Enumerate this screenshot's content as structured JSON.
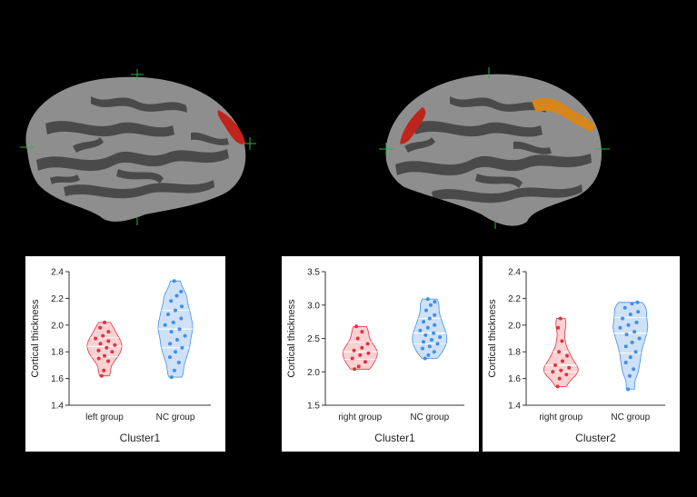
{
  "colors": {
    "background": "#000000",
    "brain_gyri": "#8e8e8e",
    "brain_sulci": "#4a4a4a",
    "cluster_red": "#c0241a",
    "cluster_orange": "#d6861a",
    "marker_green": "#2bb24a",
    "group_red": "#e0333c",
    "group_blue": "#3f8fe6",
    "violin_red_fill": "#f8c9cb",
    "violin_blue_fill": "#c6dcf7"
  },
  "brains": [
    {
      "view": "left-lateral",
      "cluster_colors": [
        "#c0241a"
      ]
    },
    {
      "view": "right-lateral",
      "cluster_colors": [
        "#c0241a",
        "#d6861a"
      ]
    }
  ],
  "chart_data": [
    {
      "type": "violin",
      "title": "Cluster1",
      "ylabel": "Cortical thickness",
      "ylim": [
        1.4,
        2.4
      ],
      "yticks": [
        1.4,
        1.6,
        1.8,
        2.0,
        2.2,
        2.4
      ],
      "categories": [
        "left group",
        "NC group"
      ],
      "series": [
        {
          "name": "left group",
          "color": "#e0333c",
          "fill": "#f8c9cb",
          "values": [
            1.62,
            1.66,
            1.73,
            1.75,
            1.77,
            1.8,
            1.81,
            1.83,
            1.85,
            1.86,
            1.88,
            1.9,
            1.92,
            1.95,
            1.98,
            2.02
          ]
        },
        {
          "name": "NC group",
          "color": "#3f8fe6",
          "fill": "#c6dcf7",
          "values": [
            1.61,
            1.66,
            1.72,
            1.76,
            1.8,
            1.83,
            1.86,
            1.89,
            1.92,
            1.95,
            1.97,
            2.0,
            2.02,
            2.05,
            2.08,
            2.11,
            2.14,
            2.18,
            2.22,
            2.25,
            2.33
          ]
        }
      ]
    },
    {
      "type": "violin",
      "title": "Cluster1",
      "ylabel": "Cortical thickness",
      "ylim": [
        1.5,
        3.5
      ],
      "yticks": [
        1.5,
        2.0,
        2.5,
        3.0,
        3.5
      ],
      "categories": [
        "right group",
        "NC group"
      ],
      "series": [
        {
          "name": "right group",
          "color": "#e0333c",
          "fill": "#f8c9cb",
          "values": [
            2.04,
            2.08,
            2.15,
            2.2,
            2.25,
            2.28,
            2.32,
            2.36,
            2.42,
            2.5,
            2.6,
            2.68
          ]
        },
        {
          "name": "NC group",
          "color": "#3f8fe6",
          "fill": "#c6dcf7",
          "values": [
            2.2,
            2.25,
            2.3,
            2.35,
            2.38,
            2.42,
            2.45,
            2.48,
            2.52,
            2.55,
            2.58,
            2.62,
            2.66,
            2.7,
            2.75,
            2.8,
            2.85,
            2.92,
            3.0,
            3.05,
            3.09
          ]
        }
      ]
    },
    {
      "type": "violin",
      "title": "Cluster2",
      "ylabel": "Cortical thickness",
      "ylim": [
        1.4,
        2.4
      ],
      "yticks": [
        1.4,
        1.6,
        1.8,
        2.0,
        2.2,
        2.4
      ],
      "categories": [
        "right group",
        "NC group"
      ],
      "series": [
        {
          "name": "right group",
          "color": "#e0333c",
          "fill": "#f8c9cb",
          "values": [
            1.54,
            1.6,
            1.63,
            1.65,
            1.66,
            1.68,
            1.7,
            1.73,
            1.77,
            1.8,
            1.88,
            1.98,
            2.05
          ]
        },
        {
          "name": "NC group",
          "color": "#3f8fe6",
          "fill": "#c6dcf7",
          "values": [
            1.52,
            1.62,
            1.67,
            1.72,
            1.76,
            1.8,
            1.84,
            1.87,
            1.9,
            1.93,
            1.95,
            1.98,
            2.0,
            2.02,
            2.05,
            2.08,
            2.1,
            2.13,
            2.16,
            2.17
          ]
        }
      ]
    }
  ]
}
